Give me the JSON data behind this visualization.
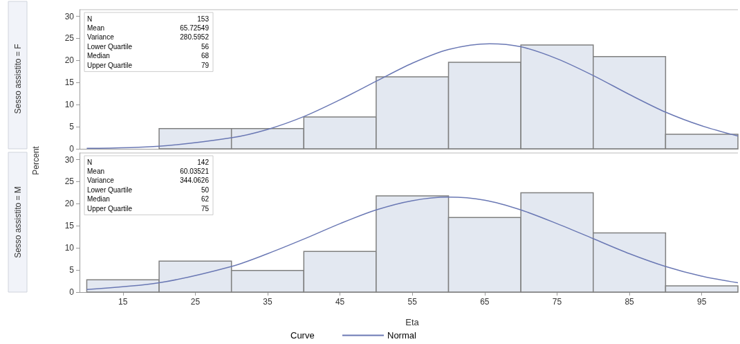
{
  "chart_data": [
    {
      "type": "histogram",
      "title": "Sesso assistito = F",
      "ylabel": "Percent",
      "bins": [
        10,
        20,
        30,
        40,
        50,
        60,
        70,
        80,
        90,
        100
      ],
      "values": [
        0,
        4.6,
        4.6,
        7.2,
        16.3,
        19.6,
        23.5,
        20.9,
        3.3
      ],
      "color": "#e3e8f1",
      "series": [
        {
          "type": "line",
          "color": "#6a78b4",
          "x": [
            10,
            20,
            30,
            35,
            40,
            45,
            50,
            55,
            60,
            65.7,
            70,
            75,
            80,
            85,
            90,
            95,
            100
          ],
          "values": [
            0.1,
            0.6,
            2.5,
            4.4,
            7.3,
            11.1,
            15.3,
            19.4,
            22.5,
            23.8,
            23.1,
            20.4,
            16.6,
            12.3,
            8.3,
            5.2,
            2.9
          ]
        }
      ],
      "annotations": [
        "N",
        "153",
        "Mean",
        "65.72549",
        "Variance",
        "280.5952",
        "Lower Quartile",
        "56",
        "Median",
        "68",
        "Upper Quartile",
        "79"
      ],
      "xlim": [
        9,
        100
      ],
      "xticks": [
        15,
        25,
        35,
        45,
        55,
        65,
        75,
        85,
        95
      ],
      "ylim": [
        0,
        31.5
      ],
      "yticks": [
        0,
        5,
        10,
        15,
        20,
        25,
        30
      ],
      "tick_labels": "y",
      "grid": false,
      "legend": false,
      "marker": "none",
      "line_style": "solid"
    },
    {
      "type": "histogram",
      "title": "Sesso assistito = M",
      "xlabel": "Eta",
      "legend_title": "Curve",
      "bins": [
        10,
        20,
        30,
        40,
        50,
        60,
        70,
        80,
        90,
        100
      ],
      "values": [
        2.8,
        7.0,
        4.9,
        9.2,
        21.8,
        16.9,
        22.5,
        13.4,
        1.4
      ],
      "color": "#e3e8f1",
      "series": [
        {
          "type": "line",
          "name": "Normal",
          "color": "#6a78b4",
          "x": [
            10,
            20,
            30,
            35,
            40,
            45,
            50,
            55,
            60,
            65,
            70,
            75,
            80,
            85,
            90,
            95,
            100
          ],
          "values": [
            0.6,
            2.1,
            5.8,
            8.7,
            12.0,
            15.5,
            18.6,
            20.7,
            21.5,
            20.8,
            18.6,
            15.5,
            12.1,
            8.7,
            5.8,
            3.6,
            2.1
          ]
        }
      ],
      "annotations": [
        "N",
        "142",
        "Mean",
        "60.03521",
        "Variance",
        "344.0626",
        "Lower Quartile",
        "50",
        "Median",
        "62",
        "Upper Quartile",
        "75"
      ],
      "xlim": [
        9,
        100
      ],
      "xticks": [
        15,
        25,
        35,
        45,
        55,
        65,
        75,
        85,
        95
      ],
      "ylim": [
        0,
        31.5
      ],
      "yticks": [
        0,
        5,
        10,
        15,
        20,
        25,
        30
      ],
      "grid": false,
      "legend": "bottom",
      "marker": "none",
      "line_style": "solid"
    }
  ]
}
